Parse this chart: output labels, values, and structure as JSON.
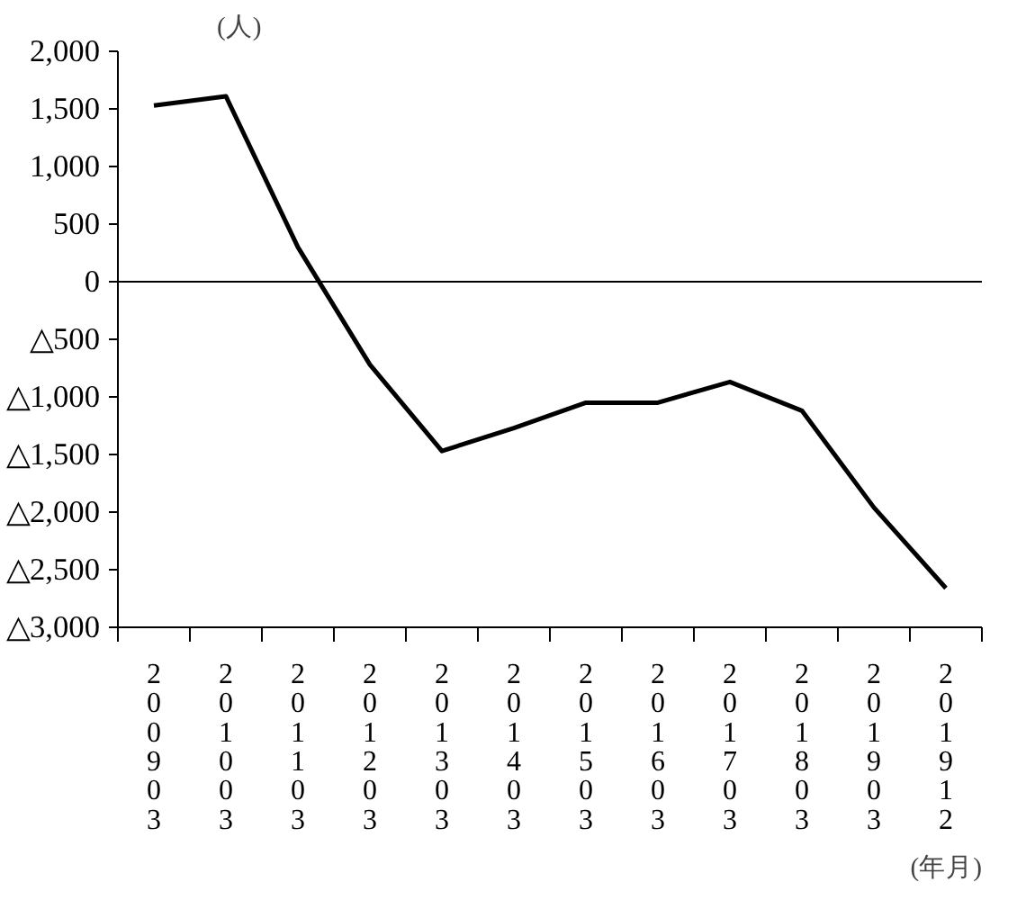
{
  "chart_data": {
    "type": "line",
    "ylabel": "(人)",
    "xlabel": "(年月)",
    "categories": [
      "200903",
      "201003",
      "201103",
      "201203",
      "201303",
      "201403",
      "201503",
      "201603",
      "201703",
      "201803",
      "201903",
      "201912"
    ],
    "series": [
      {
        "color": "#000000",
        "values": [
          1530,
          1610,
          300,
          -720,
          -1470,
          -1270,
          -1050,
          -1050,
          -870,
          -1120,
          -1960,
          -2660
        ]
      }
    ],
    "ylim": [
      -3000,
      2000
    ],
    "yticks": [
      {
        "value": -3000,
        "label": "△3,000"
      },
      {
        "value": -2500,
        "label": "△2,500"
      },
      {
        "value": -2000,
        "label": "△2,000"
      },
      {
        "value": -1500,
        "label": "△1,500"
      },
      {
        "value": -1000,
        "label": "△1,000"
      },
      {
        "value": -500,
        "label": "△500"
      },
      0,
      {
        "value": 500,
        "label": "500"
      },
      {
        "value": 1000,
        "label": "1,000"
      },
      {
        "value": 1500,
        "label": "1,500"
      },
      {
        "value": 2000,
        "label": "2,000"
      }
    ],
    "ref_lines": [
      {
        "axis": "y",
        "value": 0,
        "color": "#000000"
      }
    ],
    "grid": false,
    "marker": "none",
    "line_style": "solid"
  }
}
